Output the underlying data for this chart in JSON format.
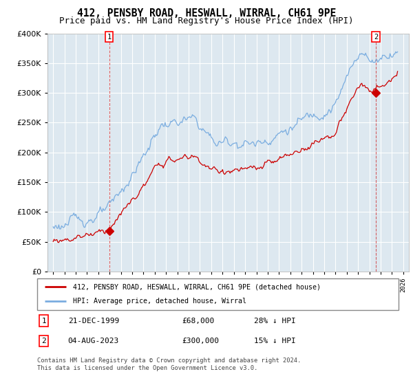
{
  "title": "412, PENSBY ROAD, HESWALL, WIRRAL, CH61 9PE",
  "subtitle": "Price paid vs. HM Land Registry's House Price Index (HPI)",
  "legend_line1": "412, PENSBY ROAD, HESWALL, WIRRAL, CH61 9PE (detached house)",
  "legend_line2": "HPI: Average price, detached house, Wirral",
  "footnote1": "Contains HM Land Registry data © Crown copyright and database right 2024.",
  "footnote2": "This data is licensed under the Open Government Licence v3.0.",
  "table_rows": [
    {
      "num": "1",
      "date": "21-DEC-1999",
      "price": "£68,000",
      "hpi": "28% ↓ HPI"
    },
    {
      "num": "2",
      "date": "04-AUG-2023",
      "price": "£300,000",
      "hpi": "15% ↓ HPI"
    }
  ],
  "marker1_year": 1999.97,
  "marker1_price": 68000,
  "marker2_year": 2023.58,
  "marker2_price": 300000,
  "ylim": [
    0,
    400000
  ],
  "xlim_start": 1994.5,
  "xlim_end": 2026.5,
  "background_color": "#ffffff",
  "plot_bg_color": "#dde8f0",
  "grid_color": "#ffffff",
  "red_color": "#cc0000",
  "blue_color": "#7aade0",
  "title_fontsize": 10.5,
  "subtitle_fontsize": 9
}
